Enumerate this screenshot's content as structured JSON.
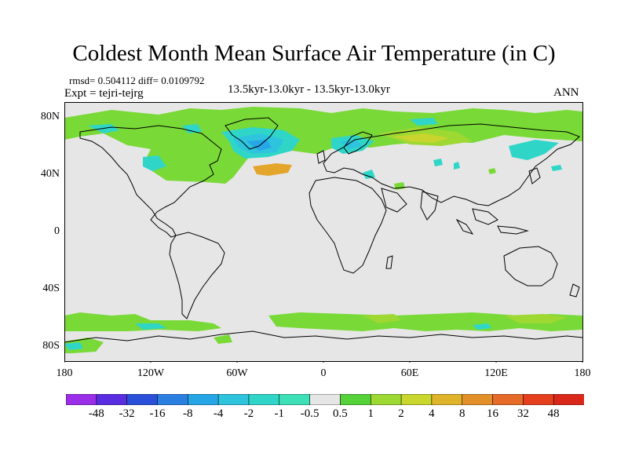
{
  "title": "Coldest Month Mean Surface Air Temperature (in C)",
  "stats_text": "rmsd= 0.504112 diff= 0.0109792",
  "experiment_text": "Expt = tejri-tejrg",
  "subtitle": "13.5kyr-13.0kyr - 13.5kyr-13.0kyr",
  "season": "ANN",
  "lat_labels": [
    "80N",
    "40N",
    "0",
    "40S",
    "80S"
  ],
  "lon_labels": [
    "180",
    "120W",
    "60W",
    "0",
    "60E",
    "120E",
    "180"
  ],
  "colorbar": {
    "labels": [
      "-48",
      "-32",
      "-16",
      "-8",
      "-4",
      "-2",
      "-1",
      "-0.5",
      "0.5",
      "1",
      "2",
      "4",
      "8",
      "16",
      "32",
      "48"
    ],
    "colors": [
      "#9b2ee8",
      "#5a2ee0",
      "#2a4fd8",
      "#2b7fe0",
      "#26a6e6",
      "#2ec4dd",
      "#2fd6c8",
      "#3ee0b8",
      "#e6e6e6",
      "#55d23a",
      "#9ed832",
      "#c9d62e",
      "#e0b42a",
      "#e4902a",
      "#e66a28",
      "#e4401e",
      "#d9281a"
    ]
  },
  "colors": {
    "land_background": "#e6e6e6",
    "coastline": "#000000",
    "positive_small": "#79d936",
    "positive_mid": "#9ed832",
    "positive_large": "#c8d52e",
    "warm": "#e3a62b",
    "negative_small": "#2fd6c8",
    "negative_mid": "#2ec4dd",
    "negative_large": "#26a6e6"
  }
}
